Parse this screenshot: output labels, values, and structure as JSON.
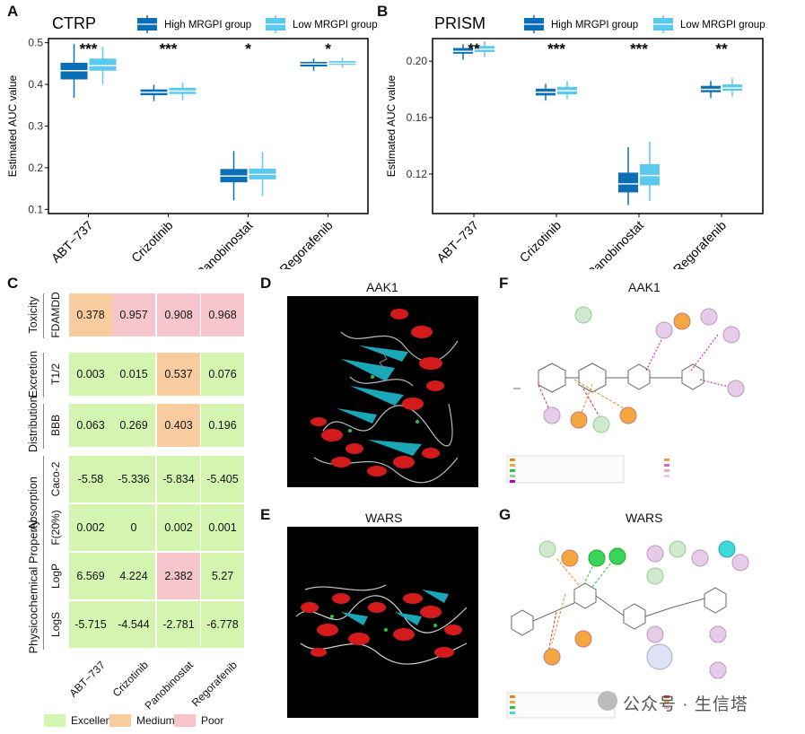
{
  "panels": {
    "A": "A",
    "B": "B",
    "C": "C",
    "D": "D",
    "E": "E",
    "F": "F",
    "G": "G"
  },
  "colors": {
    "high": "#0A6FB7",
    "low": "#5BC8EE",
    "excellent": "#D3F5B0",
    "medium": "#F9CC9F",
    "poor": "#F7C6CC"
  },
  "chart_data": [
    {
      "type": "box",
      "title": "CTRP",
      "ylabel": "Estimated AUC value",
      "categories": [
        "ABT−737",
        "Crizotinib",
        "Panobinostat",
        "Regorafenib"
      ],
      "ylim": [
        0.09,
        0.51
      ],
      "yticks": [
        0.1,
        0.2,
        0.3,
        0.4,
        0.5
      ],
      "ytick_labels": [
        "0.1",
        "0.2",
        "0.3",
        "0.4",
        "0.5"
      ],
      "significance": [
        "***",
        "***",
        "*",
        "*"
      ],
      "legend": [
        "High MRGPI group",
        "Low MRGPI group"
      ],
      "series": [
        {
          "name": "High MRGPI group",
          "boxes": [
            {
              "min": 0.368,
              "q1": 0.412,
              "median": 0.433,
              "q3": 0.452,
              "max": 0.497
            },
            {
              "min": 0.36,
              "q1": 0.374,
              "median": 0.381,
              "q3": 0.388,
              "max": 0.399
            },
            {
              "min": 0.122,
              "q1": 0.165,
              "median": 0.18,
              "q3": 0.197,
              "max": 0.24
            },
            {
              "min": 0.433,
              "q1": 0.443,
              "median": 0.449,
              "q3": 0.454,
              "max": 0.462
            }
          ]
        },
        {
          "name": "Low MRGPI group",
          "boxes": [
            {
              "min": 0.4,
              "q1": 0.433,
              "median": 0.445,
              "q3": 0.462,
              "max": 0.49
            },
            {
              "min": 0.362,
              "q1": 0.377,
              "median": 0.384,
              "q3": 0.392,
              "max": 0.404
            },
            {
              "min": 0.132,
              "q1": 0.172,
              "median": 0.184,
              "q3": 0.198,
              "max": 0.238
            },
            {
              "min": 0.44,
              "q1": 0.447,
              "median": 0.451,
              "q3": 0.456,
              "max": 0.464
            }
          ]
        }
      ]
    },
    {
      "type": "box",
      "title": "PRISM",
      "ylabel": "Estimated AUC value",
      "categories": [
        "ABT−737",
        "Crizotinib",
        "Panobinostat",
        "Regorafenib"
      ],
      "ylim": [
        0.092,
        0.216
      ],
      "yticks": [
        0.12,
        0.16,
        0.2
      ],
      "ytick_labels": [
        "0.12",
        "0.16",
        "0.20"
      ],
      "significance": [
        "**",
        "***",
        "***",
        "**"
      ],
      "legend": [
        "High MRGPI group",
        "Low MRGPI group"
      ],
      "series": [
        {
          "name": "High MRGPI group",
          "boxes": [
            {
              "min": 0.201,
              "q1": 0.2053,
              "median": 0.207,
              "q3": 0.2093,
              "max": 0.212
            },
            {
              "min": 0.172,
              "q1": 0.1757,
              "median": 0.178,
              "q3": 0.1805,
              "max": 0.184
            },
            {
              "min": 0.098,
              "q1": 0.107,
              "median": 0.113,
              "q3": 0.121,
              "max": 0.139
            },
            {
              "min": 0.174,
              "q1": 0.178,
              "median": 0.18,
              "q3": 0.1825,
              "max": 0.186
            }
          ]
        },
        {
          "name": "Low MRGPI group",
          "boxes": [
            {
              "min": 0.203,
              "q1": 0.2065,
              "median": 0.2085,
              "q3": 0.2107,
              "max": 0.214
            },
            {
              "min": 0.173,
              "q1": 0.1765,
              "median": 0.179,
              "q3": 0.1818,
              "max": 0.186
            },
            {
              "min": 0.101,
              "q1": 0.112,
              "median": 0.119,
              "q3": 0.127,
              "max": 0.143
            },
            {
              "min": 0.175,
              "q1": 0.179,
              "median": 0.181,
              "q3": 0.1835,
              "max": 0.188
            }
          ]
        }
      ]
    }
  ],
  "admet": {
    "columns": [
      "ABT−737",
      "Crizotinib",
      "Panobinostat",
      "Regorafenib"
    ],
    "groups": [
      {
        "name": "Toxicity",
        "rows": [
          {
            "label": "FDAMDD",
            "values": [
              "0.378",
              "0.957",
              "0.908",
              "0.968"
            ],
            "classes": [
              "medium",
              "poor",
              "poor",
              "poor"
            ]
          }
        ]
      },
      {
        "name": "Excretion",
        "rows": [
          {
            "label": "T1/2",
            "values": [
              "0.003",
              "0.015",
              "0.537",
              "0.076"
            ],
            "classes": [
              "excellent",
              "excellent",
              "medium",
              "excellent"
            ]
          }
        ]
      },
      {
        "name": "Distribution",
        "rows": [
          {
            "label": "BBB",
            "values": [
              "0.063",
              "0.269",
              "0.403",
              "0.196"
            ],
            "classes": [
              "excellent",
              "excellent",
              "medium",
              "excellent"
            ]
          }
        ]
      },
      {
        "name": "Absorption",
        "rows": [
          {
            "label": "Caco-2",
            "values": [
              "-5.58",
              "-5.336",
              "-5.834",
              "-5.405"
            ],
            "classes": [
              "excellent",
              "excellent",
              "excellent",
              "excellent"
            ]
          },
          {
            "label": "F(20%)",
            "values": [
              "0.002",
              "0",
              "0.002",
              "0.001"
            ],
            "classes": [
              "excellent",
              "excellent",
              "excellent",
              "excellent"
            ]
          }
        ]
      },
      {
        "name": "Physicochemical Property",
        "rows": [
          {
            "label": "LogP",
            "values": [
              "6.569",
              "4.224",
              "2.382",
              "5.27"
            ],
            "classes": [
              "excellent",
              "excellent",
              "poor",
              "excellent"
            ]
          },
          {
            "label": "LogS",
            "values": [
              "-5.715",
              "-4.544",
              "-2.781",
              "-6.778"
            ],
            "classes": [
              "excellent",
              "excellent",
              "excellent",
              "excellent"
            ]
          }
        ]
      }
    ],
    "legend": [
      {
        "label": "Excellent",
        "class": "excellent"
      },
      {
        "label": "Medium",
        "class": "medium"
      },
      {
        "label": "Poor",
        "class": "poor"
      }
    ]
  },
  "docking": {
    "D_title": "AAK1",
    "E_title": "WARS",
    "F_title": "AAK1",
    "G_title": "WARS"
  },
  "watermark": "公众号 · 生信塔"
}
